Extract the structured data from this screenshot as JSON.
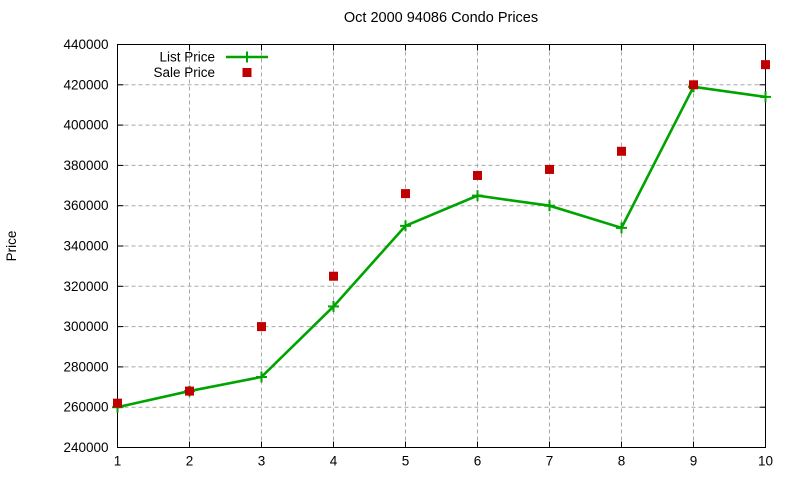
{
  "chart_data": {
    "type": "line",
    "title": "Oct 2000 94086 Condo Prices",
    "xlabel": "",
    "ylabel": "Price",
    "x": [
      1,
      2,
      3,
      4,
      5,
      6,
      7,
      8,
      9,
      10
    ],
    "series": [
      {
        "name": "List Price",
        "style": "line-with-plus-markers",
        "color": "#00a400",
        "values": [
          260000,
          268000,
          275000,
          310000,
          350000,
          365000,
          360000,
          349000,
          419000,
          414000
        ]
      },
      {
        "name": "Sale Price",
        "style": "square-points",
        "color": "#c00000",
        "values": [
          262000,
          268000,
          300000,
          325000,
          366000,
          375000,
          378000,
          387000,
          420000,
          430000
        ]
      }
    ],
    "xlim": [
      1,
      10
    ],
    "ylim": [
      240000,
      440000
    ],
    "xtick_values": [
      1,
      2,
      3,
      4,
      5,
      6,
      7,
      8,
      9,
      10
    ],
    "ytick_start": 240000,
    "ytick_step": 20000,
    "ytick_end": 440000,
    "grid": true,
    "legend_position": "top-left-inside",
    "colors": {
      "axis": "#000000",
      "grid": "#a8a8a8",
      "text": "#000000",
      "background": "#ffffff"
    }
  }
}
